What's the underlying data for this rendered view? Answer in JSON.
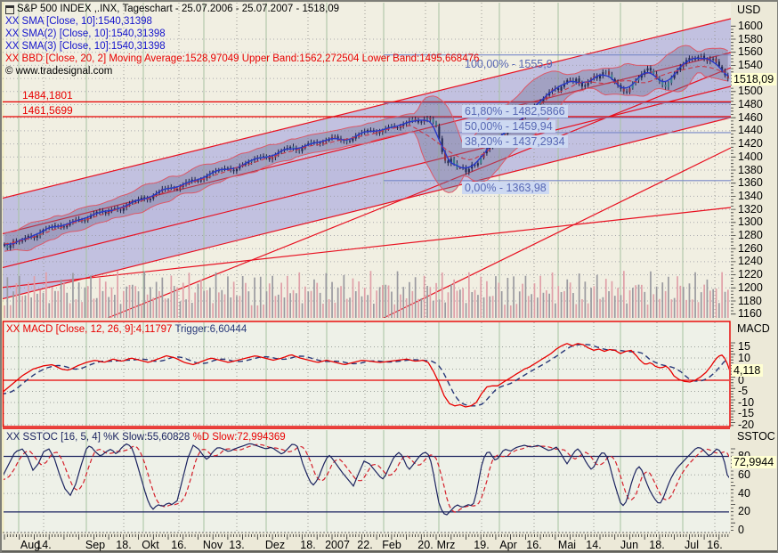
{
  "window": {
    "title": "S&P 500 INDEX ,.INX, Tageschart - 25.07.2006 - 25.07.2007 - 1518,09",
    "copyright": "© www.tradesignal.com"
  },
  "main_panel": {
    "legend": [
      {
        "text": "XX SMA [Close, 10]:1540,31398",
        "color": "#1414cc"
      },
      {
        "text": "XX SMA(2) [Close, 10]:1540,31398",
        "color": "#1414cc"
      },
      {
        "text": "XX SMA(3) [Close, 10]:1540,31398",
        "color": "#1414cc"
      },
      {
        "text": "XX BBD [Close, 20, 2] Moving Average:1528,97049 Upper Band:1562,272504 Lower Band:1495,668476",
        "color": "#e80000"
      }
    ],
    "price_levels": [
      {
        "label": "1484,1801",
        "value": 1484.1801
      },
      {
        "label": "1461,5699",
        "value": 1461.5699
      }
    ],
    "fibonacci": [
      {
        "label": "100,00% - 1555,9",
        "value": 1555.9,
        "boxed": false
      },
      {
        "label": "61,80% - 1482,5866",
        "value": 1482.5866,
        "boxed": true
      },
      {
        "label": "50,00% - 1459,94",
        "value": 1459.94,
        "boxed": true
      },
      {
        "label": "38,20% - 1437,2934",
        "value": 1437.2934,
        "boxed": true
      },
      {
        "label": "0,00% - 1363,98",
        "value": 1363.98,
        "boxed": true
      }
    ],
    "y_axis": {
      "unit": "USD",
      "ticks": [
        "1600",
        "1580",
        "1560",
        "1540",
        "1520",
        "1500",
        "1480",
        "1460",
        "1440",
        "1420",
        "1400",
        "1380",
        "1360",
        "1340",
        "1320",
        "1300",
        "1280",
        "1260",
        "1240",
        "1220",
        "1200",
        "1180",
        "1160"
      ],
      "current": "1518,09"
    }
  },
  "macd_panel": {
    "header_main": "XX MACD [Close, 12, 26, 9]:4,11797",
    "header_trigger": "Trigger:6,60444",
    "axis_title": "MACD",
    "ticks": [
      "15",
      "10",
      "5",
      "0",
      "-5",
      "-10",
      "-15",
      "-20"
    ],
    "current": "4,118"
  },
  "sstoc_panel": {
    "header_k": "XX SSTOC [16, 5, 4] %K Slow:55,60828",
    "header_d": "%D Slow:72,994369",
    "axis_title": "SSTOC",
    "ticks": [
      "80",
      "60",
      "40",
      "20",
      "0"
    ],
    "current": "72,9944"
  },
  "x_axis": {
    "labels": [
      "Aug",
      "14.",
      "Sep",
      "18.",
      "Okt",
      "16.",
      "Nov",
      "13.",
      "Dez",
      "18.",
      "2007",
      "22.",
      "Feb",
      "20.",
      "Mrz",
      "19.",
      "Apr",
      "16.",
      "Mai",
      "14.",
      "Jun",
      "18.",
      "Jul",
      "16."
    ]
  },
  "chart_data": [
    {
      "type": "candlestick",
      "title": "S&P 500 INDEX .INX Tageschart 25.07.2006 - 25.07.2007",
      "unit": "USD",
      "ylim": [
        1160,
        1600
      ],
      "current_price": 1518.09,
      "sma_close_10": 1540.31398,
      "bollinger": {
        "period": 20,
        "dev": 2,
        "moving_average": 1528.97049,
        "upper_band": 1562.272504,
        "lower_band": 1495.668476
      },
      "horizontal_levels": [
        1484.1801,
        1461.5699
      ],
      "fib_levels": [
        1555.9,
        1482.5866,
        1459.94,
        1437.2934,
        1363.98
      ],
      "x_months": [
        "Aug",
        "Sep",
        "Okt",
        "Nov",
        "Dez",
        "2007",
        "Feb",
        "Mrz",
        "Apr",
        "Mai",
        "Jun",
        "Jul"
      ],
      "price_anchors": [
        0,
        1268,
        8,
        1260,
        14,
        1272,
        22,
        1270,
        30,
        1280,
        38,
        1276,
        46,
        1288,
        54,
        1292,
        62,
        1296,
        70,
        1292,
        78,
        1300,
        86,
        1306,
        94,
        1302,
        102,
        1312,
        110,
        1318,
        118,
        1314,
        126,
        1322,
        134,
        1318,
        142,
        1328,
        150,
        1332,
        158,
        1338,
        166,
        1334,
        174,
        1344,
        182,
        1352,
        190,
        1354,
        198,
        1350,
        206,
        1360,
        214,
        1366,
        222,
        1362,
        230,
        1370,
        238,
        1378,
        246,
        1380,
        254,
        1384,
        262,
        1378,
        270,
        1388,
        278,
        1392,
        286,
        1398,
        294,
        1402,
        302,
        1396,
        310,
        1406,
        318,
        1412,
        326,
        1416,
        334,
        1408,
        342,
        1418,
        350,
        1424,
        358,
        1420,
        366,
        1426,
        374,
        1432,
        382,
        1426,
        390,
        1422,
        398,
        1432,
        406,
        1438,
        414,
        1442,
        422,
        1436,
        430,
        1442,
        438,
        1448,
        446,
        1444,
        454,
        1452,
        462,
        1458,
        470,
        1452,
        478,
        1460,
        484,
        1456,
        490,
        1446,
        494,
        1416,
        498,
        1396,
        502,
        1390,
        506,
        1398,
        510,
        1388,
        514,
        1380,
        518,
        1388,
        522,
        1376,
        526,
        1382,
        530,
        1390,
        534,
        1386,
        538,
        1396,
        542,
        1404,
        546,
        1412,
        550,
        1418,
        554,
        1426,
        558,
        1432,
        562,
        1428,
        566,
        1436,
        570,
        1442,
        574,
        1448,
        578,
        1444,
        582,
        1452,
        586,
        1460,
        590,
        1466,
        594,
        1472,
        598,
        1478,
        602,
        1476,
        606,
        1484,
        610,
        1490,
        614,
        1496,
        618,
        1502,
        622,
        1506,
        626,
        1502,
        630,
        1508,
        634,
        1514,
        638,
        1520,
        642,
        1514,
        646,
        1520,
        650,
        1512,
        654,
        1506,
        658,
        1512,
        662,
        1518,
        666,
        1524,
        670,
        1520,
        674,
        1526,
        678,
        1532,
        682,
        1528,
        686,
        1520,
        690,
        1514,
        694,
        1508,
        698,
        1502,
        702,
        1498,
        706,
        1504,
        710,
        1512,
        714,
        1518,
        718,
        1524,
        722,
        1530,
        726,
        1536,
        730,
        1532,
        734,
        1526,
        738,
        1518,
        742,
        1512,
        746,
        1506,
        750,
        1514,
        754,
        1522,
        758,
        1530,
        762,
        1536,
        766,
        1542,
        770,
        1548,
        774,
        1552,
        778,
        1548,
        782,
        1552,
        786,
        1555,
        790,
        1550,
        794,
        1546,
        798,
        1552,
        802,
        1548,
        806,
        1540,
        810,
        1532,
        814,
        1524,
        818,
        1518
      ]
    },
    {
      "type": "line",
      "name": "MACD",
      "params": "[Close, 12, 26, 9]",
      "value": 4.11797,
      "trigger": 6.60444,
      "ticks": [
        15,
        10,
        5,
        0,
        -5,
        -10,
        -15,
        -20
      ],
      "ylim": [
        -22,
        25
      ],
      "macd_anchors": [
        0,
        -6,
        12,
        -2,
        24,
        2,
        36,
        5,
        48,
        6.5,
        58,
        7,
        68,
        5,
        76,
        4.5,
        86,
        6.5,
        96,
        8,
        106,
        9,
        116,
        8,
        126,
        9.5,
        136,
        8.5,
        146,
        10,
        156,
        9,
        166,
        8,
        176,
        9.5,
        186,
        11,
        196,
        10,
        206,
        8,
        216,
        7,
        226,
        8.5,
        236,
        10,
        246,
        9,
        256,
        8,
        266,
        9,
        276,
        10,
        286,
        11,
        296,
        10,
        306,
        9,
        316,
        10,
        326,
        11.5,
        336,
        10,
        346,
        9,
        356,
        8,
        366,
        9,
        376,
        8,
        386,
        7,
        396,
        8,
        406,
        9,
        416,
        8.5,
        426,
        8,
        436,
        8.5,
        446,
        9,
        456,
        9.5,
        466,
        8.5,
        474,
        9,
        480,
        8,
        486,
        4,
        492,
        -1,
        498,
        -7,
        504,
        -10.5,
        510,
        -11.5,
        516,
        -11,
        522,
        -12,
        528,
        -11.5,
        534,
        -10,
        540,
        -6,
        546,
        -3,
        552,
        -2.5,
        558,
        -2.5,
        564,
        -1,
        570,
        0.5,
        576,
        2,
        582,
        3.5,
        588,
        5,
        594,
        6,
        600,
        7.5,
        606,
        9,
        612,
        10.5,
        618,
        12,
        624,
        14,
        630,
        15.5,
        636,
        16.5,
        642,
        15.5,
        648,
        16.5,
        654,
        16,
        660,
        14.5,
        666,
        13.5,
        672,
        14,
        678,
        13,
        684,
        13.8,
        690,
        13.4,
        696,
        12,
        702,
        13,
        708,
        13.4,
        714,
        11,
        718,
        9,
        724,
        7,
        730,
        8,
        736,
        6,
        742,
        5.5,
        748,
        6.5,
        752,
        4.5,
        756,
        2,
        762,
        0.3,
        768,
        -0.5,
        774,
        -0.8,
        780,
        0,
        786,
        1.5,
        792,
        3.5,
        798,
        6.5,
        802,
        9,
        806,
        10.8,
        810,
        11.3,
        814,
        9.5,
        817,
        6.5,
        819,
        4.1
      ]
    },
    {
      "type": "line",
      "name": "SSTOC",
      "params": "[16, 5, 4]",
      "k_slow": 55.60828,
      "d_slow": 72.994369,
      "levels": [
        80,
        20
      ],
      "ticks": [
        80,
        60,
        40,
        20,
        0
      ],
      "ylim": [
        0,
        100
      ],
      "k_anchors": [
        0,
        55,
        8,
        70,
        16,
        85,
        24,
        88,
        30,
        80,
        36,
        65,
        42,
        72,
        48,
        85,
        54,
        88,
        60,
        78,
        66,
        60,
        72,
        45,
        78,
        38,
        84,
        50,
        90,
        70,
        96,
        88,
        100,
        92,
        106,
        85,
        112,
        80,
        118,
        85,
        124,
        88,
        130,
        82,
        136,
        90,
        142,
        94,
        148,
        88,
        152,
        75,
        158,
        55,
        164,
        35,
        170,
        22,
        176,
        28,
        182,
        26,
        188,
        30,
        192,
        28,
        198,
        32,
        204,
        55,
        210,
        78,
        216,
        92,
        222,
        88,
        228,
        80,
        232,
        76,
        238,
        85,
        244,
        90,
        250,
        88,
        256,
        85,
        262,
        88,
        268,
        90,
        274,
        92,
        280,
        94,
        286,
        92,
        292,
        90,
        298,
        88,
        304,
        90,
        310,
        86,
        316,
        82,
        322,
        88,
        328,
        94,
        334,
        90,
        338,
        75,
        344,
        60,
        350,
        48,
        356,
        55,
        362,
        70,
        368,
        82,
        372,
        78,
        378,
        70,
        384,
        62,
        390,
        55,
        396,
        48,
        402,
        62,
        408,
        75,
        414,
        72,
        420,
        65,
        426,
        58,
        430,
        55,
        436,
        68,
        442,
        80,
        448,
        85,
        452,
        78,
        458,
        65,
        464,
        72,
        470,
        80,
        476,
        85,
        480,
        82,
        484,
        72,
        488,
        50,
        492,
        30,
        496,
        20,
        500,
        16,
        504,
        20,
        508,
        24,
        512,
        28,
        516,
        26,
        520,
        25,
        524,
        28,
        528,
        27,
        532,
        30,
        536,
        50,
        540,
        70,
        544,
        82,
        548,
        86,
        552,
        80,
        556,
        75,
        560,
        80,
        564,
        86,
        568,
        88,
        572,
        85,
        576,
        88,
        580,
        90,
        584,
        91,
        588,
        92,
        592,
        91,
        596,
        90,
        600,
        91,
        604,
        92,
        608,
        90,
        612,
        88,
        616,
        86,
        620,
        88,
        624,
        90,
        628,
        85,
        632,
        78,
        636,
        72,
        640,
        78,
        644,
        85,
        648,
        88,
        652,
        84,
        656,
        76,
        660,
        70,
        664,
        65,
        668,
        72,
        672,
        80,
        676,
        85,
        680,
        82,
        684,
        70,
        688,
        55,
        692,
        42,
        696,
        30,
        700,
        26,
        704,
        35,
        708,
        50,
        712,
        62,
        716,
        70,
        720,
        65,
        724,
        55,
        728,
        45,
        732,
        38,
        736,
        32,
        740,
        28,
        744,
        35,
        748,
        45,
        752,
        55,
        756,
        62,
        760,
        68,
        764,
        72,
        768,
        76,
        772,
        80,
        776,
        84,
        780,
        88,
        784,
        90,
        788,
        88,
        792,
        84,
        796,
        80,
        800,
        84,
        804,
        88,
        808,
        86,
        812,
        78,
        816,
        60,
        819,
        56
      ]
    }
  ],
  "colors": {
    "channel_line": "#e81020",
    "fib_line": "#7888c8",
    "sma_blue": "#2838c8",
    "sma_red": "#c83848",
    "bollinger_stroke": "#dd5868",
    "macd_line": "#e80000",
    "trigger_line": "#283878",
    "k_line": "#1c2460",
    "d_line": "#d51f2a",
    "volume_gray": "#9a9aa0",
    "volume_pink": "#e0a0a8",
    "grid_green": "#a6c2a0",
    "badge_bg": "#ffffd2"
  }
}
